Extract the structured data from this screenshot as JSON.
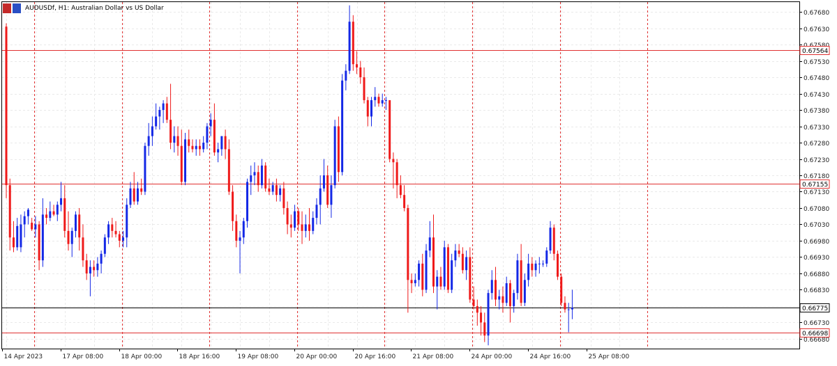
{
  "window": {
    "title": "AUDUSDf, H1:  Australian Dollar vs US Dollar"
  },
  "chart_data": {
    "type": "candlestick",
    "symbol": "AUDUSDf",
    "timeframe": "H1",
    "description": "Australian Dollar vs US Dollar",
    "ylim": [
      0.6665,
      0.6771
    ],
    "y_ticks": [
      "0.67680",
      "0.67630",
      "0.67580",
      "0.67530",
      "0.67480",
      "0.67430",
      "0.67380",
      "0.67330",
      "0.67280",
      "0.67230",
      "0.67180",
      "0.67130",
      "0.67080",
      "0.67030",
      "0.66980",
      "0.66930",
      "0.66880",
      "0.66830",
      "0.66780",
      "0.66730",
      "0.66680"
    ],
    "x_ticks": [
      "14 Apr 2023",
      "17 Apr 08:00",
      "18 Apr 00:00",
      "18 Apr 16:00",
      "19 Apr 08:00",
      "20 Apr 00:00",
      "20 Apr 16:00",
      "21 Apr 08:00",
      "24 Apr 00:00",
      "24 Apr 16:00",
      "25 Apr 08:00"
    ],
    "horizontal_lines": [
      {
        "price": 0.67564,
        "label": "0.67564",
        "color": "#e03030"
      },
      {
        "price": 0.67155,
        "label": "0.67155",
        "color": "#e03030"
      },
      {
        "price": 0.66775,
        "label": "0.66775",
        "color": "#000000"
      },
      {
        "price": 0.66698,
        "label": "0.66698",
        "color": "#e03030"
      }
    ],
    "colors": {
      "bull": "#1428e6",
      "bear": "#ef1a1a",
      "grid": "#e9e9e9",
      "separator": "#e03030",
      "axis_text": "#222222"
    },
    "candles": [
      {
        "o": 0.67635,
        "h": 0.67645,
        "l": 0.6711,
        "c": 0.6715
      },
      {
        "o": 0.6715,
        "h": 0.6717,
        "l": 0.6695,
        "c": 0.6699
      },
      {
        "o": 0.6699,
        "h": 0.6704,
        "l": 0.66945,
        "c": 0.6696
      },
      {
        "o": 0.6696,
        "h": 0.6705,
        "l": 0.6695,
        "c": 0.67025
      },
      {
        "o": 0.6696,
        "h": 0.6706,
        "l": 0.66945,
        "c": 0.6703
      },
      {
        "o": 0.6703,
        "h": 0.6707,
        "l": 0.6699,
        "c": 0.67055
      },
      {
        "o": 0.67055,
        "h": 0.6708,
        "l": 0.6703,
        "c": 0.67075
      },
      {
        "o": 0.67035,
        "h": 0.6705,
        "l": 0.6701,
        "c": 0.67015
      },
      {
        "o": 0.67015,
        "h": 0.67055,
        "l": 0.6699,
        "c": 0.6703
      },
      {
        "o": 0.6703,
        "h": 0.6704,
        "l": 0.6689,
        "c": 0.6692
      },
      {
        "o": 0.6692,
        "h": 0.6711,
        "l": 0.669,
        "c": 0.6706
      },
      {
        "o": 0.6706,
        "h": 0.6708,
        "l": 0.6703,
        "c": 0.6705
      },
      {
        "o": 0.6705,
        "h": 0.671,
        "l": 0.6704,
        "c": 0.6707
      },
      {
        "o": 0.6707,
        "h": 0.6709,
        "l": 0.67055,
        "c": 0.6706
      },
      {
        "o": 0.6706,
        "h": 0.671,
        "l": 0.6704,
        "c": 0.6709
      },
      {
        "o": 0.6709,
        "h": 0.6716,
        "l": 0.6707,
        "c": 0.6711
      },
      {
        "o": 0.6711,
        "h": 0.6715,
        "l": 0.6699,
        "c": 0.6701
      },
      {
        "o": 0.6701,
        "h": 0.6707,
        "l": 0.6695,
        "c": 0.6697
      },
      {
        "o": 0.6697,
        "h": 0.6702,
        "l": 0.6693,
        "c": 0.6701
      },
      {
        "o": 0.6701,
        "h": 0.6707,
        "l": 0.6699,
        "c": 0.6706
      },
      {
        "o": 0.6706,
        "h": 0.6708,
        "l": 0.6695,
        "c": 0.6699
      },
      {
        "o": 0.6699,
        "h": 0.6703,
        "l": 0.669,
        "c": 0.6692
      },
      {
        "o": 0.6692,
        "h": 0.6694,
        "l": 0.6686,
        "c": 0.6688
      },
      {
        "o": 0.6688,
        "h": 0.6692,
        "l": 0.6681,
        "c": 0.669
      },
      {
        "o": 0.669,
        "h": 0.6692,
        "l": 0.6687,
        "c": 0.6689
      },
      {
        "o": 0.6689,
        "h": 0.6693,
        "l": 0.6687,
        "c": 0.6691
      },
      {
        "o": 0.6691,
        "h": 0.6695,
        "l": 0.6688,
        "c": 0.6694
      },
      {
        "o": 0.6694,
        "h": 0.67,
        "l": 0.6693,
        "c": 0.6699
      },
      {
        "o": 0.6699,
        "h": 0.6704,
        "l": 0.6697,
        "c": 0.6703
      },
      {
        "o": 0.6703,
        "h": 0.6705,
        "l": 0.6699,
        "c": 0.6701
      },
      {
        "o": 0.6701,
        "h": 0.6704,
        "l": 0.6699,
        "c": 0.67
      },
      {
        "o": 0.67,
        "h": 0.6701,
        "l": 0.6696,
        "c": 0.6698
      },
      {
        "o": 0.6698,
        "h": 0.6701,
        "l": 0.6696,
        "c": 0.6699
      },
      {
        "o": 0.6699,
        "h": 0.6711,
        "l": 0.6696,
        "c": 0.6709
      },
      {
        "o": 0.6709,
        "h": 0.6716,
        "l": 0.6708,
        "c": 0.6714
      },
      {
        "o": 0.6714,
        "h": 0.6719,
        "l": 0.6709,
        "c": 0.671
      },
      {
        "o": 0.671,
        "h": 0.6716,
        "l": 0.6709,
        "c": 0.6714
      },
      {
        "o": 0.6714,
        "h": 0.6717,
        "l": 0.6712,
        "c": 0.6713
      },
      {
        "o": 0.6713,
        "h": 0.6728,
        "l": 0.6712,
        "c": 0.6727
      },
      {
        "o": 0.6727,
        "h": 0.6734,
        "l": 0.6724,
        "c": 0.673
      },
      {
        "o": 0.673,
        "h": 0.6736,
        "l": 0.6727,
        "c": 0.6733
      },
      {
        "o": 0.6733,
        "h": 0.674,
        "l": 0.6732,
        "c": 0.6736
      },
      {
        "o": 0.6736,
        "h": 0.6739,
        "l": 0.6732,
        "c": 0.6738
      },
      {
        "o": 0.6738,
        "h": 0.6741,
        "l": 0.6734,
        "c": 0.674
      },
      {
        "o": 0.674,
        "h": 0.6742,
        "l": 0.6734,
        "c": 0.6735
      },
      {
        "o": 0.6735,
        "h": 0.6746,
        "l": 0.6726,
        "c": 0.6728
      },
      {
        "o": 0.6728,
        "h": 0.6733,
        "l": 0.6725,
        "c": 0.673
      },
      {
        "o": 0.673,
        "h": 0.6733,
        "l": 0.6724,
        "c": 0.6727
      },
      {
        "o": 0.6727,
        "h": 0.6732,
        "l": 0.6715,
        "c": 0.6716
      },
      {
        "o": 0.6716,
        "h": 0.6731,
        "l": 0.6715,
        "c": 0.6729
      },
      {
        "o": 0.6729,
        "h": 0.6732,
        "l": 0.6725,
        "c": 0.6727
      },
      {
        "o": 0.6727,
        "h": 0.6729,
        "l": 0.6725,
        "c": 0.6726
      },
      {
        "o": 0.6726,
        "h": 0.6729,
        "l": 0.6724,
        "c": 0.6727
      },
      {
        "o": 0.6727,
        "h": 0.6729,
        "l": 0.6724,
        "c": 0.6726
      },
      {
        "o": 0.6726,
        "h": 0.673,
        "l": 0.6725,
        "c": 0.6728
      },
      {
        "o": 0.6728,
        "h": 0.6734,
        "l": 0.6726,
        "c": 0.6733
      },
      {
        "o": 0.6733,
        "h": 0.6737,
        "l": 0.673,
        "c": 0.6735
      },
      {
        "o": 0.6735,
        "h": 0.674,
        "l": 0.6724,
        "c": 0.6725
      },
      {
        "o": 0.6725,
        "h": 0.6728,
        "l": 0.6722,
        "c": 0.6726
      },
      {
        "o": 0.6726,
        "h": 0.673,
        "l": 0.6724,
        "c": 0.673
      },
      {
        "o": 0.673,
        "h": 0.6732,
        "l": 0.6723,
        "c": 0.6726
      },
      {
        "o": 0.6726,
        "h": 0.6729,
        "l": 0.6712,
        "c": 0.6713
      },
      {
        "o": 0.6713,
        "h": 0.6715,
        "l": 0.6701,
        "c": 0.6704
      },
      {
        "o": 0.6704,
        "h": 0.6706,
        "l": 0.6696,
        "c": 0.6698
      },
      {
        "o": 0.6698,
        "h": 0.6701,
        "l": 0.6688,
        "c": 0.6699
      },
      {
        "o": 0.6699,
        "h": 0.6705,
        "l": 0.6697,
        "c": 0.6704
      },
      {
        "o": 0.6704,
        "h": 0.6717,
        "l": 0.6702,
        "c": 0.6716
      },
      {
        "o": 0.6716,
        "h": 0.6721,
        "l": 0.6712,
        "c": 0.6718
      },
      {
        "o": 0.6718,
        "h": 0.6722,
        "l": 0.6715,
        "c": 0.6719
      },
      {
        "o": 0.6719,
        "h": 0.6721,
        "l": 0.6713,
        "c": 0.6715
      },
      {
        "o": 0.6715,
        "h": 0.6723,
        "l": 0.6714,
        "c": 0.6721
      },
      {
        "o": 0.6721,
        "h": 0.6722,
        "l": 0.6713,
        "c": 0.6714
      },
      {
        "o": 0.6714,
        "h": 0.6717,
        "l": 0.6712,
        "c": 0.6713
      },
      {
        "o": 0.6713,
        "h": 0.6716,
        "l": 0.6712,
        "c": 0.6715
      },
      {
        "o": 0.6715,
        "h": 0.6717,
        "l": 0.671,
        "c": 0.6712
      },
      {
        "o": 0.6712,
        "h": 0.6715,
        "l": 0.671,
        "c": 0.6714
      },
      {
        "o": 0.6714,
        "h": 0.6716,
        "l": 0.6706,
        "c": 0.6708
      },
      {
        "o": 0.6708,
        "h": 0.671,
        "l": 0.67,
        "c": 0.6703
      },
      {
        "o": 0.6703,
        "h": 0.6706,
        "l": 0.6699,
        "c": 0.6702
      },
      {
        "o": 0.6702,
        "h": 0.6709,
        "l": 0.6701,
        "c": 0.6707
      },
      {
        "o": 0.6707,
        "h": 0.6708,
        "l": 0.6701,
        "c": 0.6703
      },
      {
        "o": 0.6703,
        "h": 0.6707,
        "l": 0.6697,
        "c": 0.6701
      },
      {
        "o": 0.6701,
        "h": 0.6706,
        "l": 0.6699,
        "c": 0.6703
      },
      {
        "o": 0.6703,
        "h": 0.6708,
        "l": 0.6698,
        "c": 0.6701
      },
      {
        "o": 0.6701,
        "h": 0.6707,
        "l": 0.67,
        "c": 0.6705
      },
      {
        "o": 0.6705,
        "h": 0.6711,
        "l": 0.6703,
        "c": 0.6709
      },
      {
        "o": 0.6709,
        "h": 0.6718,
        "l": 0.6703,
        "c": 0.6714
      },
      {
        "o": 0.6714,
        "h": 0.6723,
        "l": 0.6713,
        "c": 0.6718
      },
      {
        "o": 0.6718,
        "h": 0.6721,
        "l": 0.6708,
        "c": 0.6709
      },
      {
        "o": 0.6709,
        "h": 0.6718,
        "l": 0.6705,
        "c": 0.6715
      },
      {
        "o": 0.6715,
        "h": 0.6735,
        "l": 0.6714,
        "c": 0.6733
      },
      {
        "o": 0.6733,
        "h": 0.6736,
        "l": 0.6716,
        "c": 0.6719
      },
      {
        "o": 0.6719,
        "h": 0.6749,
        "l": 0.6718,
        "c": 0.6747
      },
      {
        "o": 0.6747,
        "h": 0.6752,
        "l": 0.6744,
        "c": 0.675
      },
      {
        "o": 0.675,
        "h": 0.677,
        "l": 0.6749,
        "c": 0.6765
      },
      {
        "o": 0.6765,
        "h": 0.6767,
        "l": 0.675,
        "c": 0.6752
      },
      {
        "o": 0.6752,
        "h": 0.6756,
        "l": 0.6749,
        "c": 0.6751
      },
      {
        "o": 0.6751,
        "h": 0.6753,
        "l": 0.6746,
        "c": 0.6748
      },
      {
        "o": 0.6748,
        "h": 0.6751,
        "l": 0.674,
        "c": 0.6741
      },
      {
        "o": 0.6741,
        "h": 0.6742,
        "l": 0.6733,
        "c": 0.6736
      },
      {
        "o": 0.6736,
        "h": 0.6742,
        "l": 0.6733,
        "c": 0.6741
      },
      {
        "o": 0.6741,
        "h": 0.6745,
        "l": 0.6739,
        "c": 0.6742
      },
      {
        "o": 0.6742,
        "h": 0.6743,
        "l": 0.6739,
        "c": 0.674
      },
      {
        "o": 0.674,
        "h": 0.6743,
        "l": 0.6739,
        "c": 0.6741
      },
      {
        "o": 0.6741,
        "h": 0.6742,
        "l": 0.6738,
        "c": 0.6741
      },
      {
        "o": 0.6741,
        "h": 0.6741,
        "l": 0.6722,
        "c": 0.6723
      },
      {
        "o": 0.6723,
        "h": 0.6725,
        "l": 0.6714,
        "c": 0.6722
      },
      {
        "o": 0.6722,
        "h": 0.6723,
        "l": 0.6711,
        "c": 0.6715
      },
      {
        "o": 0.6715,
        "h": 0.6718,
        "l": 0.6711,
        "c": 0.6712
      },
      {
        "o": 0.6712,
        "h": 0.6715,
        "l": 0.6707,
        "c": 0.6708
      },
      {
        "o": 0.6708,
        "h": 0.6709,
        "l": 0.6676,
        "c": 0.6686
      },
      {
        "o": 0.6686,
        "h": 0.6688,
        "l": 0.6682,
        "c": 0.6685
      },
      {
        "o": 0.6685,
        "h": 0.6688,
        "l": 0.6684,
        "c": 0.6686
      },
      {
        "o": 0.6686,
        "h": 0.6692,
        "l": 0.6684,
        "c": 0.6691
      },
      {
        "o": 0.6691,
        "h": 0.6694,
        "l": 0.6681,
        "c": 0.6683
      },
      {
        "o": 0.6683,
        "h": 0.6697,
        "l": 0.6682,
        "c": 0.6695
      },
      {
        "o": 0.6695,
        "h": 0.6704,
        "l": 0.6693,
        "c": 0.6699
      },
      {
        "o": 0.6699,
        "h": 0.6706,
        "l": 0.6682,
        "c": 0.6684
      },
      {
        "o": 0.6684,
        "h": 0.6689,
        "l": 0.6677,
        "c": 0.6687
      },
      {
        "o": 0.6687,
        "h": 0.669,
        "l": 0.6683,
        "c": 0.6684
      },
      {
        "o": 0.6684,
        "h": 0.6698,
        "l": 0.6683,
        "c": 0.6696
      },
      {
        "o": 0.6696,
        "h": 0.6697,
        "l": 0.6682,
        "c": 0.6683
      },
      {
        "o": 0.6683,
        "h": 0.6694,
        "l": 0.6682,
        "c": 0.6692
      },
      {
        "o": 0.6692,
        "h": 0.6697,
        "l": 0.669,
        "c": 0.6695
      },
      {
        "o": 0.6695,
        "h": 0.6697,
        "l": 0.6693,
        "c": 0.6694
      },
      {
        "o": 0.6694,
        "h": 0.6696,
        "l": 0.6688,
        "c": 0.6689
      },
      {
        "o": 0.6689,
        "h": 0.6695,
        "l": 0.6686,
        "c": 0.6693
      },
      {
        "o": 0.6693,
        "h": 0.6696,
        "l": 0.6679,
        "c": 0.668
      },
      {
        "o": 0.668,
        "h": 0.6684,
        "l": 0.6677,
        "c": 0.6678
      },
      {
        "o": 0.6678,
        "h": 0.668,
        "l": 0.6672,
        "c": 0.6676
      },
      {
        "o": 0.6676,
        "h": 0.6678,
        "l": 0.6669,
        "c": 0.6673
      },
      {
        "o": 0.6673,
        "h": 0.6676,
        "l": 0.6667,
        "c": 0.6669
      },
      {
        "o": 0.6669,
        "h": 0.6683,
        "l": 0.6666,
        "c": 0.6682
      },
      {
        "o": 0.6682,
        "h": 0.6689,
        "l": 0.668,
        "c": 0.6686
      },
      {
        "o": 0.6686,
        "h": 0.669,
        "l": 0.6678,
        "c": 0.668
      },
      {
        "o": 0.668,
        "h": 0.6683,
        "l": 0.6677,
        "c": 0.6681
      },
      {
        "o": 0.6681,
        "h": 0.6684,
        "l": 0.6676,
        "c": 0.6679
      },
      {
        "o": 0.6679,
        "h": 0.6687,
        "l": 0.6678,
        "c": 0.6685
      },
      {
        "o": 0.6685,
        "h": 0.6686,
        "l": 0.6673,
        "c": 0.6678
      },
      {
        "o": 0.6678,
        "h": 0.6683,
        "l": 0.6676,
        "c": 0.6682
      },
      {
        "o": 0.6682,
        "h": 0.6694,
        "l": 0.668,
        "c": 0.6692
      },
      {
        "o": 0.6692,
        "h": 0.6697,
        "l": 0.6678,
        "c": 0.6679
      },
      {
        "o": 0.6679,
        "h": 0.6688,
        "l": 0.6678,
        "c": 0.6686
      },
      {
        "o": 0.6686,
        "h": 0.6694,
        "l": 0.6684,
        "c": 0.6691
      },
      {
        "o": 0.6691,
        "h": 0.6693,
        "l": 0.6687,
        "c": 0.6689
      },
      {
        "o": 0.6689,
        "h": 0.6692,
        "l": 0.6687,
        "c": 0.6691
      },
      {
        "o": 0.6691,
        "h": 0.6693,
        "l": 0.6688,
        "c": 0.6691
      },
      {
        "o": 0.6691,
        "h": 0.6692,
        "l": 0.669,
        "c": 0.6691
      },
      {
        "o": 0.6691,
        "h": 0.6696,
        "l": 0.669,
        "c": 0.6695
      },
      {
        "o": 0.6695,
        "h": 0.6704,
        "l": 0.6694,
        "c": 0.6702
      },
      {
        "o": 0.6702,
        "h": 0.6703,
        "l": 0.6692,
        "c": 0.6694
      },
      {
        "o": 0.6694,
        "h": 0.6695,
        "l": 0.6686,
        "c": 0.6687
      },
      {
        "o": 0.6687,
        "h": 0.6688,
        "l": 0.6678,
        "c": 0.6679
      },
      {
        "o": 0.6679,
        "h": 0.6681,
        "l": 0.6676,
        "c": 0.6677
      },
      {
        "o": 0.6677,
        "h": 0.6679,
        "l": 0.667,
        "c": 0.6677
      },
      {
        "o": 0.6677,
        "h": 0.6683,
        "l": 0.6674,
        "c": 0.66775
      }
    ]
  }
}
